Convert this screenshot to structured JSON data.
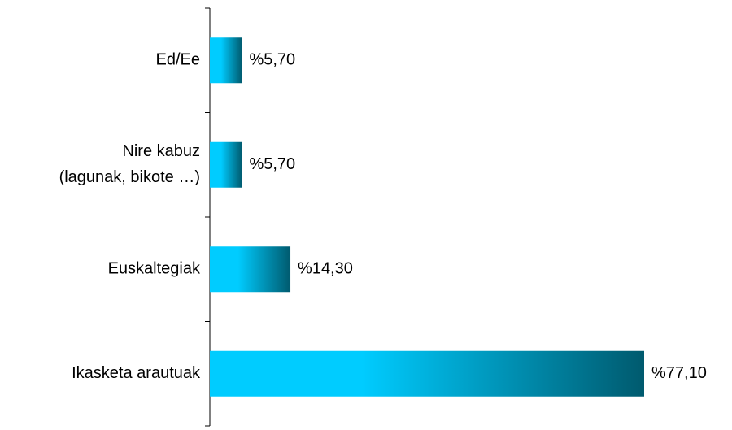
{
  "chart_data": {
    "type": "barh",
    "categories": [
      "Ed/Ee",
      "Nire kabuz\n(lagunak, bikote …)",
      "Euskaltegiak",
      "Ikasketa arautuak"
    ],
    "values": [
      5.7,
      5.7,
      14.3,
      77.1
    ],
    "value_labels": [
      "%5,70",
      "%5,70",
      "%14,30",
      "%77,10"
    ],
    "gradient": [
      "#00ccff",
      "#005a6e"
    ]
  }
}
